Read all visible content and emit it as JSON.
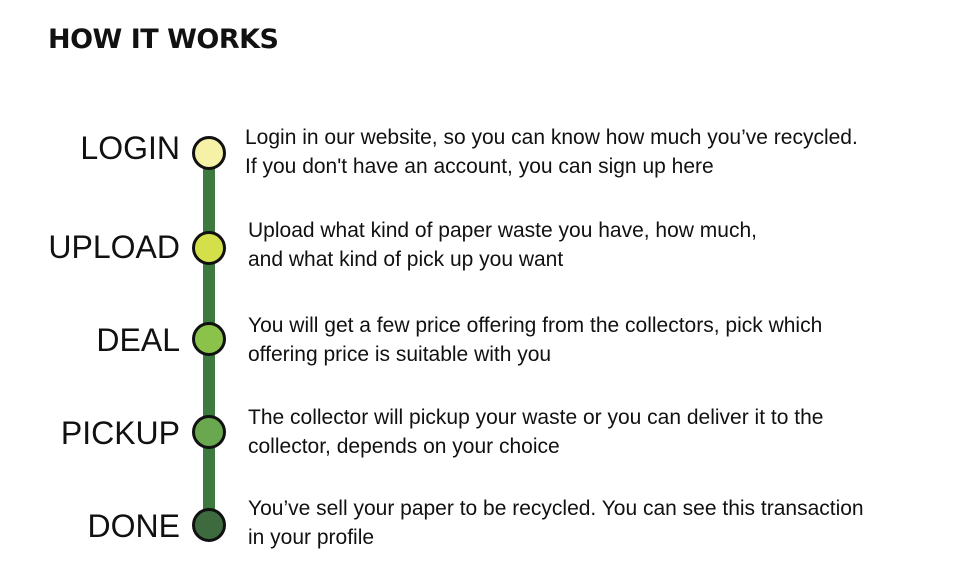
{
  "page": {
    "title": "HOW IT WORKS"
  },
  "steps": [
    {
      "label": "LOGIN",
      "dot_color": "#f5f1a6",
      "icon": "step-circle-icon",
      "description": [
        "Login in our website, so you can know how much you’ve recycled.",
        "If you don't have an account, you can sign up here"
      ]
    },
    {
      "label": "UPLOAD",
      "dot_color": "#d4e04a",
      "icon": "step-circle-icon",
      "description": [
        "Upload what kind of paper waste you have, how much,",
        "and what kind of pick up you want"
      ]
    },
    {
      "label": "DEAL",
      "dot_color": "#8bc34a",
      "icon": "step-circle-icon",
      "description": [
        "You will get a few price offering from the collectors, pick which",
        "offering price is suitable with you"
      ]
    },
    {
      "label": "PICKUP",
      "dot_color": "#6aa84f",
      "icon": "step-circle-icon",
      "description": [
        "The collector will pickup your waste or you can deliver it to the",
        "collector, depends on your choice"
      ]
    },
    {
      "label": "DONE",
      "dot_color": "#3d6b3f",
      "icon": "step-circle-icon",
      "description": [
        "You’ve sell your paper to be recycled. You can see this transaction",
        "in your profile"
      ]
    }
  ],
  "colors": {
    "timeline": "#3d7a3f",
    "text": "#111111",
    "background": "#ffffff"
  }
}
